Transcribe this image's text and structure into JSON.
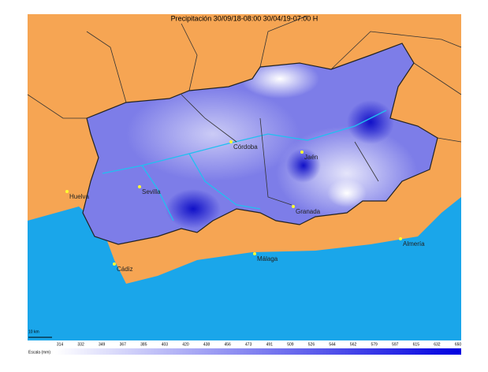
{
  "header": {
    "title": "Precipitación 30/09/18-08:00 30/04/19-07:00 H"
  },
  "cities": [
    {
      "name": "Córdoba"
    },
    {
      "name": "Jaén"
    },
    {
      "name": "Sevilla"
    },
    {
      "name": "Huelva"
    },
    {
      "name": "Granada"
    },
    {
      "name": "Málaga"
    },
    {
      "name": "Almería"
    },
    {
      "name": "Cádiz"
    }
  ],
  "scale_bar": {
    "label": "10 km"
  },
  "legend": {
    "unit": "Escala (mm)",
    "ticks": [
      314,
      332,
      349,
      367,
      385,
      403,
      420,
      438,
      456,
      473,
      491,
      509,
      526,
      544,
      562,
      579,
      597,
      615,
      632,
      650
    ]
  }
}
